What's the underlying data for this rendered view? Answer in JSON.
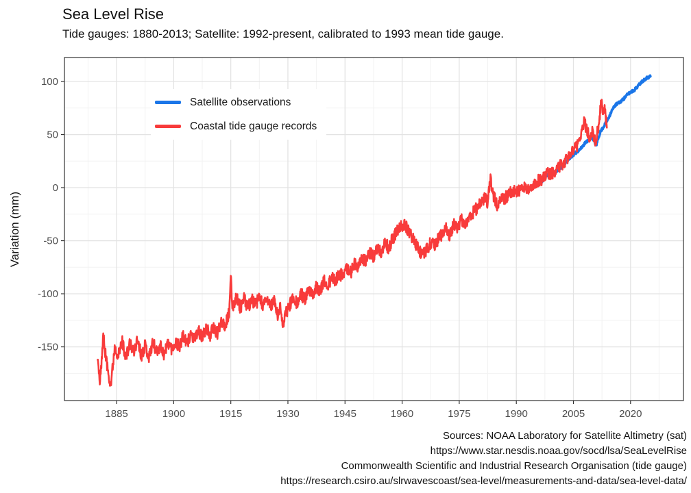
{
  "title": "Sea Level Rise",
  "subtitle": "Tide gauges: 1880-2013; Satellite: 1992-present, calibrated to 1993 mean tide gauge.",
  "y_axis_title": "Variation (mm)",
  "caption": {
    "lines": [
      "Sources: NOAA Laboratory for Satellite Altimetry (sat)",
      "https://www.star.nesdis.noaa.gov/socd/lsa/SeaLevelRise",
      "Commonwealth Scientific and Industrial Research Organisation (tide gauge)",
      "https://research.csiro.au/slrwavescoast/sea-level/measurements-and-data/sea-level-data/"
    ]
  },
  "colors": {
    "satellite": "#1b76e8",
    "tide_gauge": "#f83b3b",
    "grid_major": "#e3e3e3",
    "grid_minor": "#f2f2f2",
    "panel_border": "#333333",
    "tick_label": "#4d4d4d",
    "tick_mark": "#333333"
  },
  "chart_data": {
    "type": "line",
    "title": "Sea Level Rise",
    "xlabel": "",
    "ylabel": "Variation (mm)",
    "x_ticks": [
      1885,
      1900,
      1915,
      1930,
      1945,
      1960,
      1975,
      1990,
      2005,
      2020
    ],
    "y_ticks": [
      100,
      50,
      0,
      -50,
      -100,
      -150
    ],
    "xlim": [
      1871.3,
      2033.9
    ],
    "ylim": [
      -200.6,
      122.6
    ],
    "grid": "major+minor",
    "legend_position": "inside-top-left",
    "series": [
      {
        "name": "Coastal tide gauge records",
        "color": "#f83b3b",
        "line_width": 2.6,
        "noise_mm": 6,
        "points": [
          [
            1880.0,
            -160
          ],
          [
            1880.6,
            -185
          ],
          [
            1881.5,
            -140
          ],
          [
            1882.5,
            -168
          ],
          [
            1883.5,
            -186
          ],
          [
            1884.5,
            -150
          ],
          [
            1885.5,
            -158
          ],
          [
            1886.5,
            -145
          ],
          [
            1887.5,
            -160
          ],
          [
            1888.5,
            -147
          ],
          [
            1889.5,
            -155
          ],
          [
            1890.5,
            -143
          ],
          [
            1891.5,
            -158
          ],
          [
            1892.5,
            -148
          ],
          [
            1893.5,
            -160
          ],
          [
            1894.5,
            -145
          ],
          [
            1895.5,
            -155
          ],
          [
            1896.5,
            -148
          ],
          [
            1897.5,
            -158
          ],
          [
            1898.5,
            -145
          ],
          [
            1899.5,
            -152
          ],
          [
            1900.5,
            -145
          ],
          [
            1901.5,
            -150
          ],
          [
            1902.5,
            -140
          ],
          [
            1903.5,
            -148
          ],
          [
            1904.5,
            -137
          ],
          [
            1905.5,
            -144
          ],
          [
            1906.5,
            -134
          ],
          [
            1907.5,
            -142
          ],
          [
            1908.5,
            -132
          ],
          [
            1909.5,
            -139
          ],
          [
            1910.5,
            -132
          ],
          [
            1911.5,
            -138
          ],
          [
            1912.5,
            -124
          ],
          [
            1913.5,
            -130
          ],
          [
            1914.6,
            -118
          ],
          [
            1915.0,
            -85
          ],
          [
            1915.4,
            -112
          ],
          [
            1916.5,
            -103
          ],
          [
            1917.5,
            -113
          ],
          [
            1918.5,
            -105
          ],
          [
            1919.5,
            -113
          ],
          [
            1920.5,
            -105
          ],
          [
            1921.5,
            -111
          ],
          [
            1922.5,
            -103
          ],
          [
            1923.5,
            -112
          ],
          [
            1924.5,
            -105
          ],
          [
            1925.5,
            -112
          ],
          [
            1926.5,
            -106
          ],
          [
            1927.3,
            -122
          ],
          [
            1928.0,
            -112
          ],
          [
            1928.8,
            -130
          ],
          [
            1929.5,
            -118
          ],
          [
            1930.5,
            -110
          ],
          [
            1931.5,
            -102
          ],
          [
            1932.5,
            -110
          ],
          [
            1933.5,
            -100
          ],
          [
            1934.5,
            -106
          ],
          [
            1935.5,
            -96
          ],
          [
            1936.5,
            -102
          ],
          [
            1937.5,
            -92
          ],
          [
            1938.5,
            -98
          ],
          [
            1939.5,
            -88
          ],
          [
            1940.5,
            -93
          ],
          [
            1941.5,
            -85
          ],
          [
            1942.5,
            -88
          ],
          [
            1943.5,
            -80
          ],
          [
            1944.5,
            -85
          ],
          [
            1945.5,
            -76
          ],
          [
            1946.5,
            -80
          ],
          [
            1947.5,
            -71
          ],
          [
            1948.5,
            -76
          ],
          [
            1949.5,
            -66
          ],
          [
            1950.5,
            -70
          ],
          [
            1951.5,
            -60
          ],
          [
            1952.5,
            -65
          ],
          [
            1953.5,
            -57
          ],
          [
            1954.5,
            -62
          ],
          [
            1955.5,
            -52
          ],
          [
            1956.5,
            -57
          ],
          [
            1957.5,
            -48
          ],
          [
            1958.5,
            -42
          ],
          [
            1959.5,
            -38
          ],
          [
            1960.5,
            -34
          ],
          [
            1961.5,
            -40
          ],
          [
            1962.5,
            -46
          ],
          [
            1963.5,
            -52
          ],
          [
            1964.5,
            -60
          ],
          [
            1965.5,
            -64
          ],
          [
            1966.5,
            -58
          ],
          [
            1967.5,
            -52
          ],
          [
            1968.5,
            -55
          ],
          [
            1969.5,
            -48
          ],
          [
            1970.5,
            -44
          ],
          [
            1971.5,
            -38
          ],
          [
            1972.5,
            -45
          ],
          [
            1973.5,
            -35
          ],
          [
            1974.5,
            -38
          ],
          [
            1975.5,
            -30
          ],
          [
            1976.5,
            -35
          ],
          [
            1977.5,
            -28
          ],
          [
            1978.5,
            -24
          ],
          [
            1979.5,
            -20
          ],
          [
            1980.5,
            -14
          ],
          [
            1981.5,
            -10
          ],
          [
            1982.5,
            -14
          ],
          [
            1983.2,
            8
          ],
          [
            1984.0,
            -8
          ],
          [
            1985.0,
            -16
          ],
          [
            1986.0,
            -12
          ],
          [
            1987.0,
            -10
          ],
          [
            1988.0,
            -6
          ],
          [
            1989.0,
            -2
          ],
          [
            1990.0,
            -5
          ],
          [
            1991.0,
            -2
          ],
          [
            1992.0,
            0
          ],
          [
            1993.0,
            -3
          ],
          [
            1994.0,
            2
          ],
          [
            1995.0,
            4
          ],
          [
            1996.0,
            7
          ],
          [
            1997.0,
            8
          ],
          [
            1998.0,
            14
          ],
          [
            1999.0,
            13
          ],
          [
            2000.0,
            15
          ],
          [
            2001.0,
            19
          ],
          [
            2002.0,
            22
          ],
          [
            2003.0,
            26
          ],
          [
            2004.0,
            30
          ],
          [
            2005.0,
            34
          ],
          [
            2006.0,
            40
          ],
          [
            2007.0,
            50
          ],
          [
            2007.8,
            62
          ],
          [
            2008.5,
            55
          ],
          [
            2009.3,
            48
          ],
          [
            2010.0,
            52
          ],
          [
            2010.8,
            44
          ],
          [
            2011.5,
            55
          ],
          [
            2012.3,
            82
          ],
          [
            2012.8,
            70
          ],
          [
            2013.2,
            75
          ],
          [
            2013.8,
            58
          ]
        ]
      },
      {
        "name": "Satellite observations",
        "color": "#1b76e8",
        "line_width": 3.5,
        "noise_mm": 1.3,
        "points": [
          [
            1993.0,
            -2
          ],
          [
            1994,
            0
          ],
          [
            1995,
            3
          ],
          [
            1996,
            5
          ],
          [
            1997,
            7
          ],
          [
            1998,
            12
          ],
          [
            1999,
            12
          ],
          [
            2000,
            14
          ],
          [
            2001,
            17
          ],
          [
            2002,
            20
          ],
          [
            2003,
            24
          ],
          [
            2004,
            28
          ],
          [
            2005,
            31
          ],
          [
            2006,
            34
          ],
          [
            2007,
            37
          ],
          [
            2008,
            42
          ],
          [
            2009,
            45
          ],
          [
            2010,
            47
          ],
          [
            2011,
            40
          ],
          [
            2012,
            52
          ],
          [
            2013,
            58
          ],
          [
            2014,
            64
          ],
          [
            2015,
            72
          ],
          [
            2016,
            78
          ],
          [
            2017,
            80
          ],
          [
            2018,
            83
          ],
          [
            2019,
            87
          ],
          [
            2020,
            90
          ],
          [
            2021,
            92
          ],
          [
            2022,
            96
          ],
          [
            2023,
            100
          ],
          [
            2024,
            103
          ],
          [
            2025.3,
            105
          ]
        ]
      }
    ],
    "draw_order": [
      1,
      0
    ],
    "sample_step_years": 0.0833,
    "noise_seed": 11
  },
  "legend": {
    "items": [
      {
        "label": "Satellite observations",
        "color": "#1b76e8"
      },
      {
        "label": "Coastal tide gauge records",
        "color": "#f83b3b"
      }
    ]
  }
}
